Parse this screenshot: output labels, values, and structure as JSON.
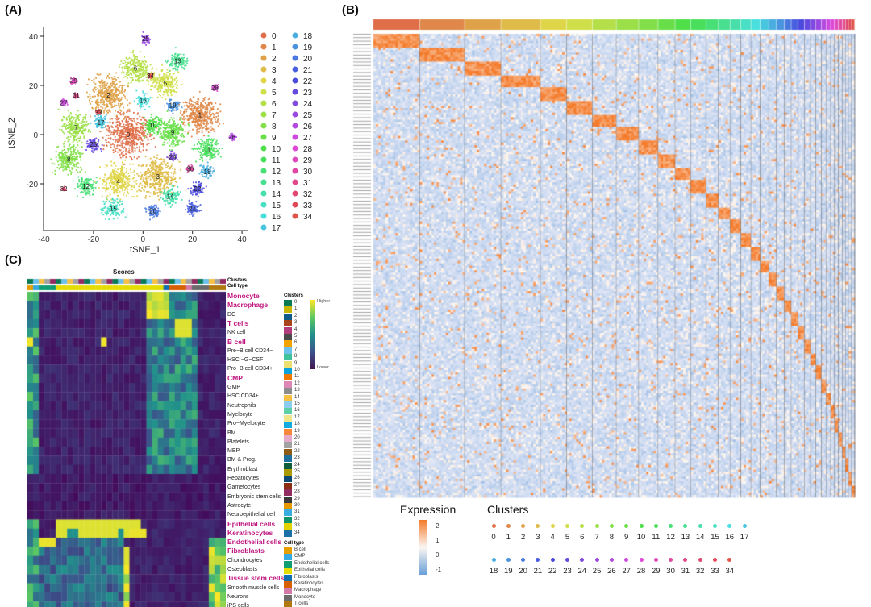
{
  "panels": {
    "a": "(A)",
    "b": "(B)",
    "c": "(C)"
  },
  "chart_data": [
    {
      "type": "scatter",
      "panel": "(A)",
      "xlabel": "tSNE_1",
      "ylabel": "tSNE_2",
      "xlim": [
        -40,
        40
      ],
      "ylim": [
        -36,
        45
      ],
      "xticks": [
        "-40",
        "-20",
        "0",
        "20",
        "40"
      ],
      "yticks": [
        "40",
        "20",
        "0",
        "-20"
      ],
      "legend_position": "right",
      "series": [
        {
          "name": "0",
          "center": [
            -6,
            0
          ]
        },
        {
          "name": "1",
          "center": [
            23,
            8
          ]
        },
        {
          "name": "2",
          "center": [
            -14,
            16
          ]
        },
        {
          "name": "3",
          "center": [
            6,
            -17
          ]
        },
        {
          "name": "4",
          "center": [
            -10,
            -19
          ]
        },
        {
          "name": "5",
          "center": [
            9,
            21
          ]
        },
        {
          "name": "6",
          "center": [
            -3,
            27
          ]
        },
        {
          "name": "7",
          "center": [
            -27,
            3
          ]
        },
        {
          "name": "8",
          "center": [
            -30,
            -10
          ]
        },
        {
          "name": "9",
          "center": [
            12,
            1
          ]
        },
        {
          "name": "10",
          "center": [
            4,
            4
          ]
        },
        {
          "name": "11",
          "center": [
            26,
            -6
          ]
        },
        {
          "name": "12",
          "center": [
            -23,
            -21
          ]
        },
        {
          "name": "13",
          "center": [
            14,
            30
          ]
        },
        {
          "name": "14",
          "center": [
            11,
            -25
          ]
        },
        {
          "name": "15",
          "center": [
            -12,
            -30
          ]
        },
        {
          "name": "16",
          "center": [
            0,
            14
          ]
        },
        {
          "name": "17",
          "center": [
            -17,
            5
          ]
        },
        {
          "name": "18",
          "center": [
            26,
            -15
          ]
        },
        {
          "name": "19",
          "center": [
            12,
            12
          ]
        },
        {
          "name": "20",
          "center": [
            4,
            -31
          ]
        },
        {
          "name": "21",
          "center": [
            20,
            -30
          ]
        },
        {
          "name": "22",
          "center": [
            22,
            -22
          ]
        },
        {
          "name": "23",
          "center": [
            -20,
            -4
          ]
        },
        {
          "name": "24",
          "center": [
            12,
            -9
          ]
        },
        {
          "name": "25",
          "center": [
            1,
            39
          ]
        },
        {
          "name": "26",
          "center": [
            36,
            -1
          ]
        },
        {
          "name": "27",
          "center": [
            -32,
            13
          ]
        },
        {
          "name": "28",
          "center": [
            29,
            19
          ]
        },
        {
          "name": "29",
          "center": [
            -28,
            22
          ]
        },
        {
          "name": "30",
          "center": [
            19,
            -14
          ]
        },
        {
          "name": "31",
          "center": [
            -27,
            16
          ]
        },
        {
          "name": "32",
          "center": [
            -32,
            -22
          ]
        },
        {
          "name": "33",
          "center": [
            -18,
            9
          ]
        },
        {
          "name": "34",
          "center": [
            3,
            24
          ]
        }
      ]
    },
    {
      "type": "heatmap",
      "panel": "(B)",
      "legend_title": "Expression",
      "colorbar_ticks": [
        "2",
        "1",
        "0",
        "-1"
      ],
      "colorbar_colors": [
        "#f47a2a",
        "#fbf6f1",
        "#6a9fd9"
      ],
      "clusters_title": "Clusters",
      "clusters": [
        "0",
        "1",
        "2",
        "3",
        "4",
        "5",
        "6",
        "7",
        "8",
        "9",
        "10",
        "11",
        "12",
        "13",
        "14",
        "15",
        "16",
        "17",
        "18",
        "19",
        "20",
        "21",
        "22",
        "23",
        "24",
        "25",
        "26",
        "27",
        "28",
        "29",
        "30",
        "31",
        "32",
        "33",
        "34"
      ]
    },
    {
      "type": "heatmap",
      "panel": "(C)",
      "title": "Scores",
      "annotation_labels": [
        "Clusters",
        "Cell type"
      ],
      "rows": [
        {
          "label": "Monocyte",
          "highlight": true
        },
        {
          "label": "Macrophage",
          "highlight": true
        },
        {
          "label": "DC",
          "highlight": false
        },
        {
          "label": "T cells",
          "highlight": true
        },
        {
          "label": "NK cell",
          "highlight": false
        },
        {
          "label": "B cell",
          "highlight": true
        },
        {
          "label": "Pre−B cell CD34−",
          "highlight": false
        },
        {
          "label": "HSC −G−CSF",
          "highlight": false
        },
        {
          "label": "Pro−B cell CD34+",
          "highlight": false
        },
        {
          "label": "CMP",
          "highlight": true
        },
        {
          "label": "GMP",
          "highlight": false
        },
        {
          "label": "HSC CD34+",
          "highlight": false
        },
        {
          "label": "Neutrophils",
          "highlight": false
        },
        {
          "label": "Myelocyte",
          "highlight": false
        },
        {
          "label": "Pro−Myelocyte",
          "highlight": false
        },
        {
          "label": "BM",
          "highlight": false
        },
        {
          "label": "Platelets",
          "highlight": false
        },
        {
          "label": "MEP",
          "highlight": false
        },
        {
          "label": "BM & Prog.",
          "highlight": false
        },
        {
          "label": "Erythroblast",
          "highlight": false
        },
        {
          "label": "Hepatocytes",
          "highlight": false
        },
        {
          "label": "Gametocytes",
          "highlight": false
        },
        {
          "label": "Embryonic stem cells",
          "highlight": false
        },
        {
          "label": "Astrocyte",
          "highlight": false
        },
        {
          "label": "Neuroepithelial cell",
          "highlight": false
        },
        {
          "label": "Epithelial cells",
          "highlight": true
        },
        {
          "label": "Keratinocytes",
          "highlight": true
        },
        {
          "label": "Endothelial cells",
          "highlight": true
        },
        {
          "label": "Fibroblasts",
          "highlight": true
        },
        {
          "label": "Chondrocytes",
          "highlight": false
        },
        {
          "label": "Osteoblasts",
          "highlight": false
        },
        {
          "label": "Tissue stem cells",
          "highlight": true
        },
        {
          "label": "Smooth muscle cells",
          "highlight": false
        },
        {
          "label": "Neurons",
          "highlight": false
        },
        {
          "label": "iPS cells",
          "highlight": false
        }
      ],
      "colorbar": {
        "high": "Higher",
        "low": "Lower"
      },
      "clusters_legend_title": "Clusters",
      "clusters_legend": [
        {
          "label": "0",
          "color": "#0a7a55"
        },
        {
          "label": "1",
          "color": "#c9b500"
        },
        {
          "label": "2",
          "color": "#0f5a8a"
        },
        {
          "label": "3",
          "color": "#a8431c"
        },
        {
          "label": "4",
          "color": "#b13d7c"
        },
        {
          "label": "5",
          "color": "#4a4a4a"
        },
        {
          "label": "6",
          "color": "#f4a300"
        },
        {
          "label": "7",
          "color": "#6cc0ea"
        },
        {
          "label": "8",
          "color": "#3fc39b"
        },
        {
          "label": "9",
          "color": "#ebe070"
        },
        {
          "label": "10",
          "color": "#0aa2dc"
        },
        {
          "label": "11",
          "color": "#f07800"
        },
        {
          "label": "12",
          "color": "#de87b6"
        },
        {
          "label": "13",
          "color": "#8c8c8c"
        },
        {
          "label": "14",
          "color": "#f7c043"
        },
        {
          "label": "15",
          "color": "#8ccdef"
        },
        {
          "label": "16",
          "color": "#5fcfa6"
        },
        {
          "label": "17",
          "color": "#efe68a"
        },
        {
          "label": "18",
          "color": "#10acdf"
        },
        {
          "label": "19",
          "color": "#f5873c"
        },
        {
          "label": "20",
          "color": "#e6a9c9"
        },
        {
          "label": "21",
          "color": "#a2a2a2"
        },
        {
          "label": "22",
          "color": "#8e5a14"
        },
        {
          "label": "23",
          "color": "#1b6f9c"
        },
        {
          "label": "24",
          "color": "#0c5e3e"
        },
        {
          "label": "25",
          "color": "#a89a00"
        },
        {
          "label": "26",
          "color": "#0b4a74"
        },
        {
          "label": "27",
          "color": "#8a2f12"
        },
        {
          "label": "28",
          "color": "#922b62"
        },
        {
          "label": "29",
          "color": "#3a3a3a"
        },
        {
          "label": "30",
          "color": "#e69a00"
        },
        {
          "label": "31",
          "color": "#39ace2"
        },
        {
          "label": "32",
          "color": "#0f9469"
        },
        {
          "label": "33",
          "color": "#e2d300"
        },
        {
          "label": "34",
          "color": "#1a6fa8"
        }
      ],
      "celltype_legend_title": "Cell type",
      "celltype_legend": [
        {
          "label": "B cell",
          "color": "#e69f00"
        },
        {
          "label": "CMP",
          "color": "#35a9e0"
        },
        {
          "label": "Endothelial cells",
          "color": "#0f9e73"
        },
        {
          "label": "Epithelial cells",
          "color": "#e5dc00"
        },
        {
          "label": "Fibroblasts",
          "color": "#0f6fb0"
        },
        {
          "label": "Keratinocytes",
          "color": "#d65f00"
        },
        {
          "label": "Macrophage",
          "color": "#d47aa8"
        },
        {
          "label": "Monocyte",
          "color": "#6b6b6b"
        },
        {
          "label": "T cells",
          "color": "#b07a10"
        }
      ]
    }
  ]
}
